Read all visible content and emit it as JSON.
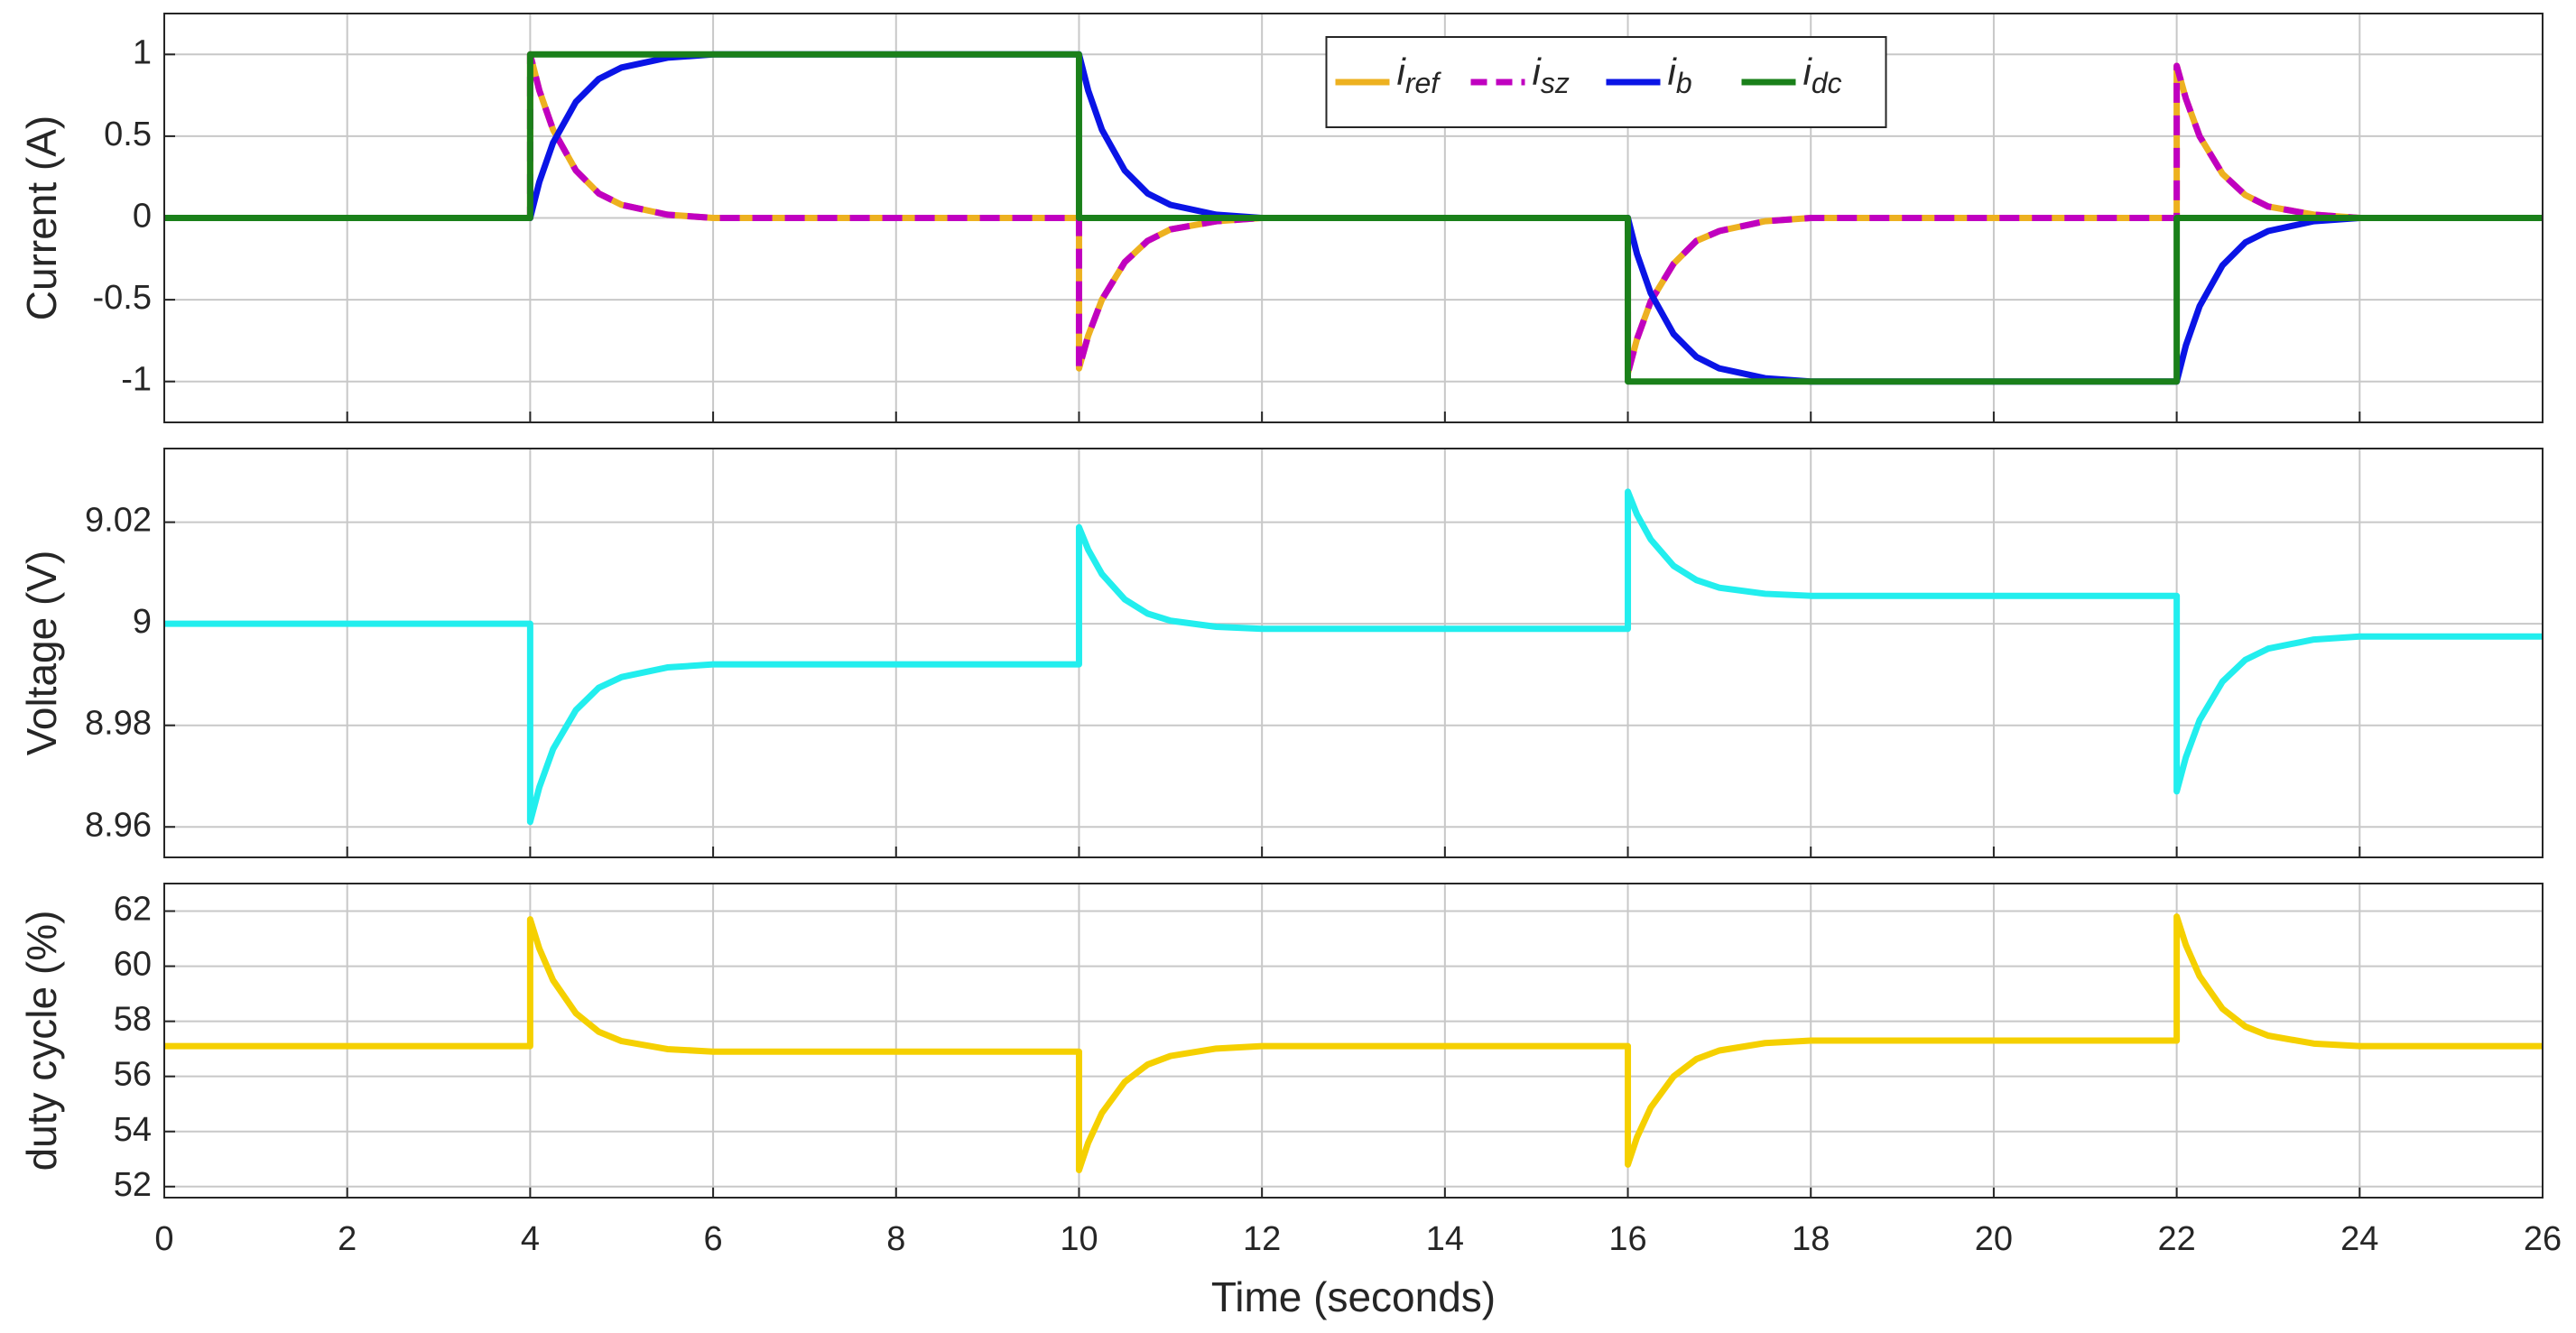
{
  "chart_data": [
    {
      "type": "line",
      "ylabel": "Current (A)",
      "legend": "north",
      "grid": true,
      "xlim": [
        0,
        26
      ],
      "xticks": [
        0,
        2,
        4,
        6,
        8,
        10,
        12,
        14,
        16,
        18,
        20,
        22,
        24,
        26
      ],
      "ylim": [
        -1.25,
        1.25
      ],
      "yticks": [
        1,
        0.5,
        0,
        -0.5,
        -1
      ],
      "x": [
        0,
        4,
        4,
        4.1,
        4.25,
        4.5,
        4.75,
        5,
        5.5,
        6,
        10,
        10,
        10.1,
        10.25,
        10.5,
        10.75,
        11,
        11.5,
        12,
        16,
        16,
        16.1,
        16.25,
        16.5,
        16.75,
        17,
        17.5,
        18,
        22,
        22,
        22.1,
        22.25,
        22.5,
        22.75,
        23,
        23.5,
        24,
        26
      ],
      "series": [
        {
          "name": "i_ref",
          "color": "#edb120",
          "dash": false,
          "values": [
            0,
            0,
            1,
            0.78,
            0.54,
            0.29,
            0.15,
            0.08,
            0.02,
            0,
            0,
            -0.92,
            -0.72,
            -0.5,
            -0.27,
            -0.14,
            -0.07,
            -0.02,
            0,
            0,
            -0.95,
            -0.74,
            -0.51,
            -0.28,
            -0.14,
            -0.08,
            -0.02,
            0,
            0,
            0.93,
            0.73,
            0.5,
            0.27,
            0.14,
            0.07,
            0.02,
            0,
            0
          ]
        },
        {
          "name": "i_sz",
          "color": "#c000c0",
          "dash": true,
          "values": [
            0,
            0,
            1,
            0.78,
            0.54,
            0.29,
            0.15,
            0.08,
            0.02,
            0,
            0,
            -0.92,
            -0.72,
            -0.5,
            -0.27,
            -0.14,
            -0.07,
            -0.02,
            0,
            0,
            -0.95,
            -0.74,
            -0.51,
            -0.28,
            -0.14,
            -0.08,
            -0.02,
            0,
            0,
            0.93,
            0.73,
            0.5,
            0.27,
            0.14,
            0.07,
            0.02,
            0,
            0
          ]
        },
        {
          "name": "i_b",
          "color": "#0a14e6",
          "dash": false,
          "values": [
            0,
            0,
            0,
            0.22,
            0.46,
            0.71,
            0.85,
            0.92,
            0.98,
            1,
            1,
            1,
            0.78,
            0.54,
            0.29,
            0.15,
            0.08,
            0.02,
            0,
            0,
            0,
            -0.22,
            -0.46,
            -0.71,
            -0.85,
            -0.92,
            -0.98,
            -1,
            -1,
            -1,
            -0.78,
            -0.54,
            -0.29,
            -0.15,
            -0.08,
            -0.02,
            0,
            0
          ]
        },
        {
          "name": "i_dc",
          "color": "#1a801a",
          "dash": false,
          "values": [
            0,
            0,
            1,
            1,
            1,
            1,
            1,
            1,
            1,
            1,
            1,
            0,
            0,
            0,
            0,
            0,
            0,
            0,
            0,
            0,
            -1,
            -1,
            -1,
            -1,
            -1,
            -1,
            -1,
            -1,
            -1,
            0,
            0,
            0,
            0,
            0,
            0,
            0,
            0,
            0
          ]
        }
      ]
    },
    {
      "type": "line",
      "ylabel": "Voltage (V)",
      "grid": true,
      "xlim": [
        0,
        26
      ],
      "xticks": [
        0,
        2,
        4,
        6,
        8,
        10,
        12,
        14,
        16,
        18,
        20,
        22,
        24,
        26
      ],
      "ylim": [
        8.954,
        9.0345
      ],
      "yticks": [
        9.02,
        9,
        8.98,
        8.96
      ],
      "x": [
        0,
        4,
        4,
        4.1,
        4.25,
        4.5,
        4.75,
        5,
        5.5,
        6,
        10,
        10,
        10.1,
        10.25,
        10.5,
        10.75,
        11,
        11.5,
        12,
        16,
        16,
        16.1,
        16.25,
        16.5,
        16.75,
        17,
        17.5,
        18,
        22,
        22,
        22.1,
        22.25,
        22.5,
        22.75,
        23,
        23.5,
        24,
        26
      ],
      "series": [
        {
          "color": "#22eeee",
          "dash": false,
          "values": [
            9,
            9,
            8.961,
            8.9678,
            8.9753,
            8.983,
            8.9874,
            8.9895,
            8.9914,
            8.992,
            8.992,
            9.019,
            9.0146,
            9.0098,
            9.0048,
            9.002,
            9.0006,
            8.9994,
            8.999,
            8.999,
            9.026,
            9.0215,
            9.0166,
            9.0114,
            9.0086,
            9.0071,
            9.0059,
            9.0055,
            9.0055,
            8.967,
            8.9737,
            8.981,
            8.9886,
            8.9929,
            8.9951,
            8.9969,
            8.9975,
            8.9975
          ]
        }
      ]
    },
    {
      "type": "line",
      "ylabel": "duty cycle (%)",
      "xlabel": "Time (seconds)",
      "grid": true,
      "xlim": [
        0,
        26
      ],
      "xticks": [
        0,
        2,
        4,
        6,
        8,
        10,
        12,
        14,
        16,
        18,
        20,
        22,
        24,
        26
      ],
      "ylim": [
        51.6,
        63
      ],
      "yticks": [
        62,
        60,
        58,
        56,
        54,
        52
      ],
      "x": [
        0,
        4,
        4,
        4.1,
        4.25,
        4.5,
        4.75,
        5,
        5.5,
        6,
        10,
        10,
        10.1,
        10.25,
        10.5,
        10.75,
        11,
        11.5,
        12,
        16,
        16,
        16.1,
        16.25,
        16.5,
        16.75,
        17,
        17.5,
        18,
        22,
        22,
        22.1,
        22.25,
        22.5,
        22.75,
        23,
        23.5,
        24,
        26
      ],
      "series": [
        {
          "color": "#f5d000",
          "dash": false,
          "values": [
            57.1,
            57.1,
            61.7,
            60.64,
            59.49,
            58.29,
            57.62,
            57.28,
            56.99,
            56.9,
            56.9,
            52.6,
            53.59,
            54.67,
            55.8,
            56.43,
            56.74,
            57.01,
            57.1,
            57.1,
            52.8,
            53.79,
            54.87,
            56,
            56.63,
            56.94,
            57.21,
            57.3,
            57.3,
            61.8,
            60.77,
            59.64,
            58.46,
            57.81,
            57.48,
            57.19,
            57.1,
            57.1
          ]
        }
      ]
    }
  ]
}
